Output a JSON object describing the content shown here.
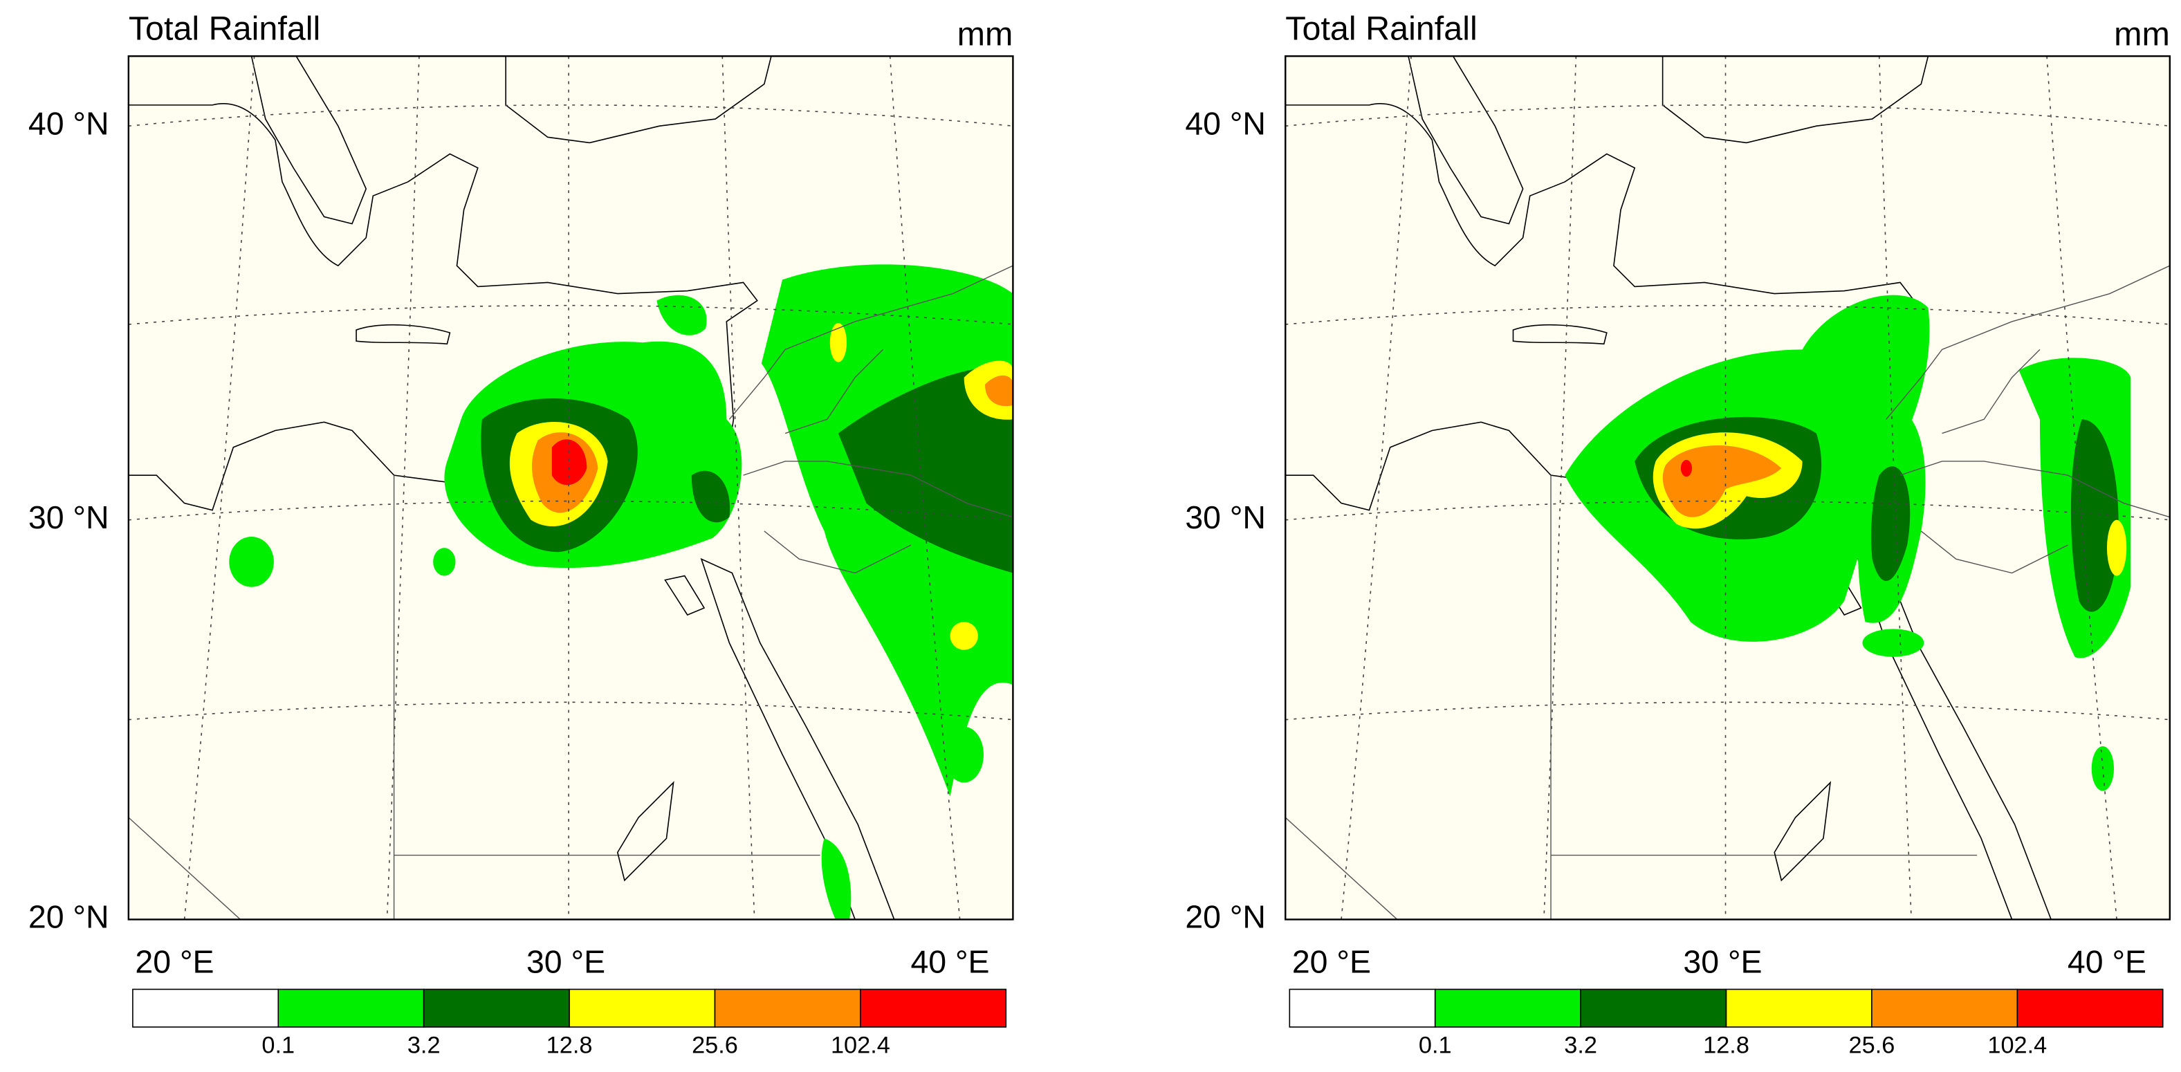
{
  "panels": [
    {
      "title": "Total Rainfall",
      "units": "mm",
      "lat_labels": [
        "40 °N",
        "30 °N",
        "20 °N"
      ],
      "lon_labels": [
        "20 °E",
        "30 °E",
        "40 °E"
      ],
      "colorbar": {
        "colors": [
          "#ffffff",
          "#00ee00",
          "#007000",
          "#ffff00",
          "#ff8c00",
          "#ff0000"
        ],
        "levels": [
          0.1,
          3.2,
          12.8,
          25.6,
          102.4
        ]
      }
    },
    {
      "title": "Total Rainfall",
      "units": "mm",
      "lat_labels": [
        "40 °N",
        "30 °N",
        "20 °N"
      ],
      "lon_labels": [
        "20 °E",
        "30 °E",
        "40 °E"
      ],
      "colorbar": {
        "colors": [
          "#ffffff",
          "#00ee00",
          "#007000",
          "#ffff00",
          "#ff8c00",
          "#ff0000"
        ],
        "levels": [
          0.1,
          3.2,
          12.8,
          25.6,
          102.4
        ]
      }
    }
  ]
}
